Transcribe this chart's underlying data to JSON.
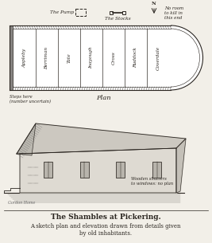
{
  "title": "The Shambles at Pickering.",
  "subtitle": "A sketch plan and elevation drawn from details given\nby old inhabitants.",
  "bg_color": "#f2efe8",
  "stall_labels": [
    "Appleby",
    "Berriman",
    "Tate",
    "Inayough",
    "Cross",
    "Ruddock",
    "Coverdale"
  ],
  "plan_label": "Plan",
  "steps_label": "Steps here\n(number uncertain)",
  "pump_label": "The Pump",
  "stocks_label": "The Stocks",
  "no_room_label": "No room\nto kill in\nthis end",
  "wooden_shutters_label": "Wooden shutters\nto windows: no plan",
  "gordon_home": "Gordon Home",
  "figsize": [
    2.67,
    3.05
  ],
  "dpi": 100
}
